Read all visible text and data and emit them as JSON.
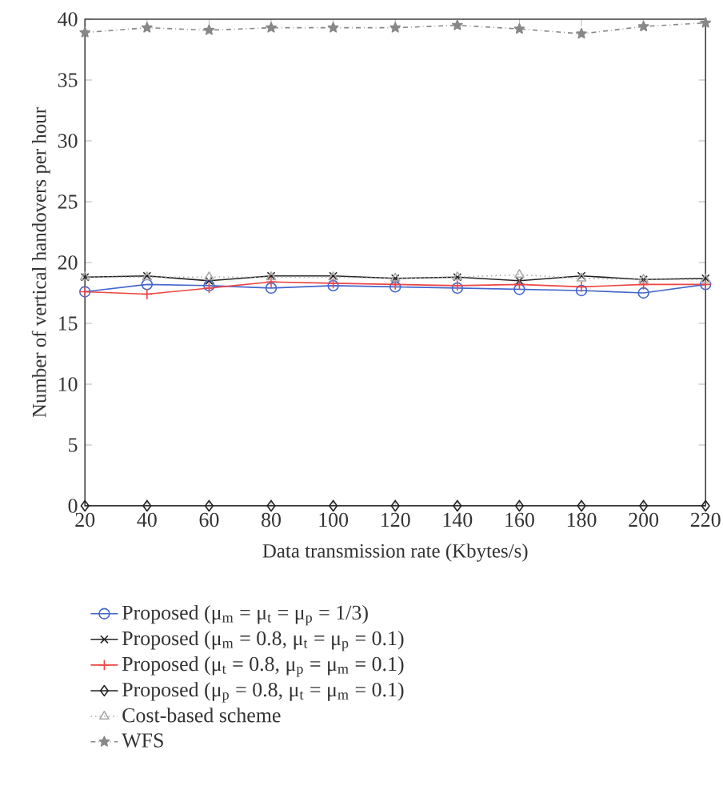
{
  "chart_data": {
    "type": "line",
    "xlabel": "Data transmission rate (Kbytes/s)",
    "ylabel": "Number of vertical handovers per hour",
    "x": [
      20,
      40,
      60,
      80,
      100,
      120,
      140,
      160,
      180,
      200,
      220
    ],
    "xlim": [
      20,
      220
    ],
    "xticks": [
      20,
      40,
      60,
      80,
      100,
      120,
      140,
      160,
      180,
      200,
      220
    ],
    "ylim": [
      0,
      40
    ],
    "yticks": [
      0,
      5,
      10,
      15,
      20,
      25,
      30,
      35,
      40
    ],
    "grid": false,
    "legend": "bottom",
    "series": [
      {
        "name": "Proposed (μ$_{m}$ = μ$_{t}$ = μ$_{p}$ = 1/3)",
        "color": "#4466cc",
        "marker": "circle",
        "line_style": "solid",
        "values": [
          17.6,
          18.2,
          18.1,
          17.9,
          18.1,
          18.0,
          17.9,
          17.8,
          17.7,
          17.5,
          18.2
        ]
      },
      {
        "name": "Proposed (μ$_{m}$ = 0.8, μ$_{t}$ = μ$_{p}$ = 0.1)",
        "color": "#222222",
        "marker": "cross",
        "line_style": "solid",
        "values": [
          18.8,
          18.9,
          18.5,
          18.9,
          18.9,
          18.7,
          18.8,
          18.5,
          18.9,
          18.6,
          18.7
        ]
      },
      {
        "name": "Proposed (μ$_{t}$ = 0.8, μ$_{p}$ = μ$_{m}$ = 0.1)",
        "color": "#ee4444",
        "marker": "plus",
        "line_style": "solid",
        "values": [
          17.6,
          17.4,
          17.9,
          18.4,
          18.3,
          18.2,
          18.1,
          18.2,
          18.0,
          18.2,
          18.2
        ]
      },
      {
        "name": "Proposed (μ$_{p}$ = 0.8, μ$_{t}$ = μ$_{m}$ = 0.1)",
        "color": "#222222",
        "marker": "diamond",
        "line_style": "solid",
        "values": [
          0,
          0,
          0,
          0,
          0,
          0,
          0,
          0,
          0,
          0,
          0
        ]
      },
      {
        "name": "Cost-based scheme",
        "color": "#aaaaaa",
        "marker": "triangle",
        "line_style": "dotted",
        "values": [
          18.8,
          18.8,
          18.8,
          18.8,
          18.8,
          18.7,
          18.8,
          19.0,
          18.7,
          18.6,
          18.6
        ]
      },
      {
        "name": "WFS",
        "color": "#888888",
        "marker": "star",
        "line_style": "dashdot",
        "values": [
          38.9,
          39.3,
          39.1,
          39.3,
          39.3,
          39.3,
          39.5,
          39.2,
          38.8,
          39.4,
          39.7
        ]
      }
    ]
  }
}
